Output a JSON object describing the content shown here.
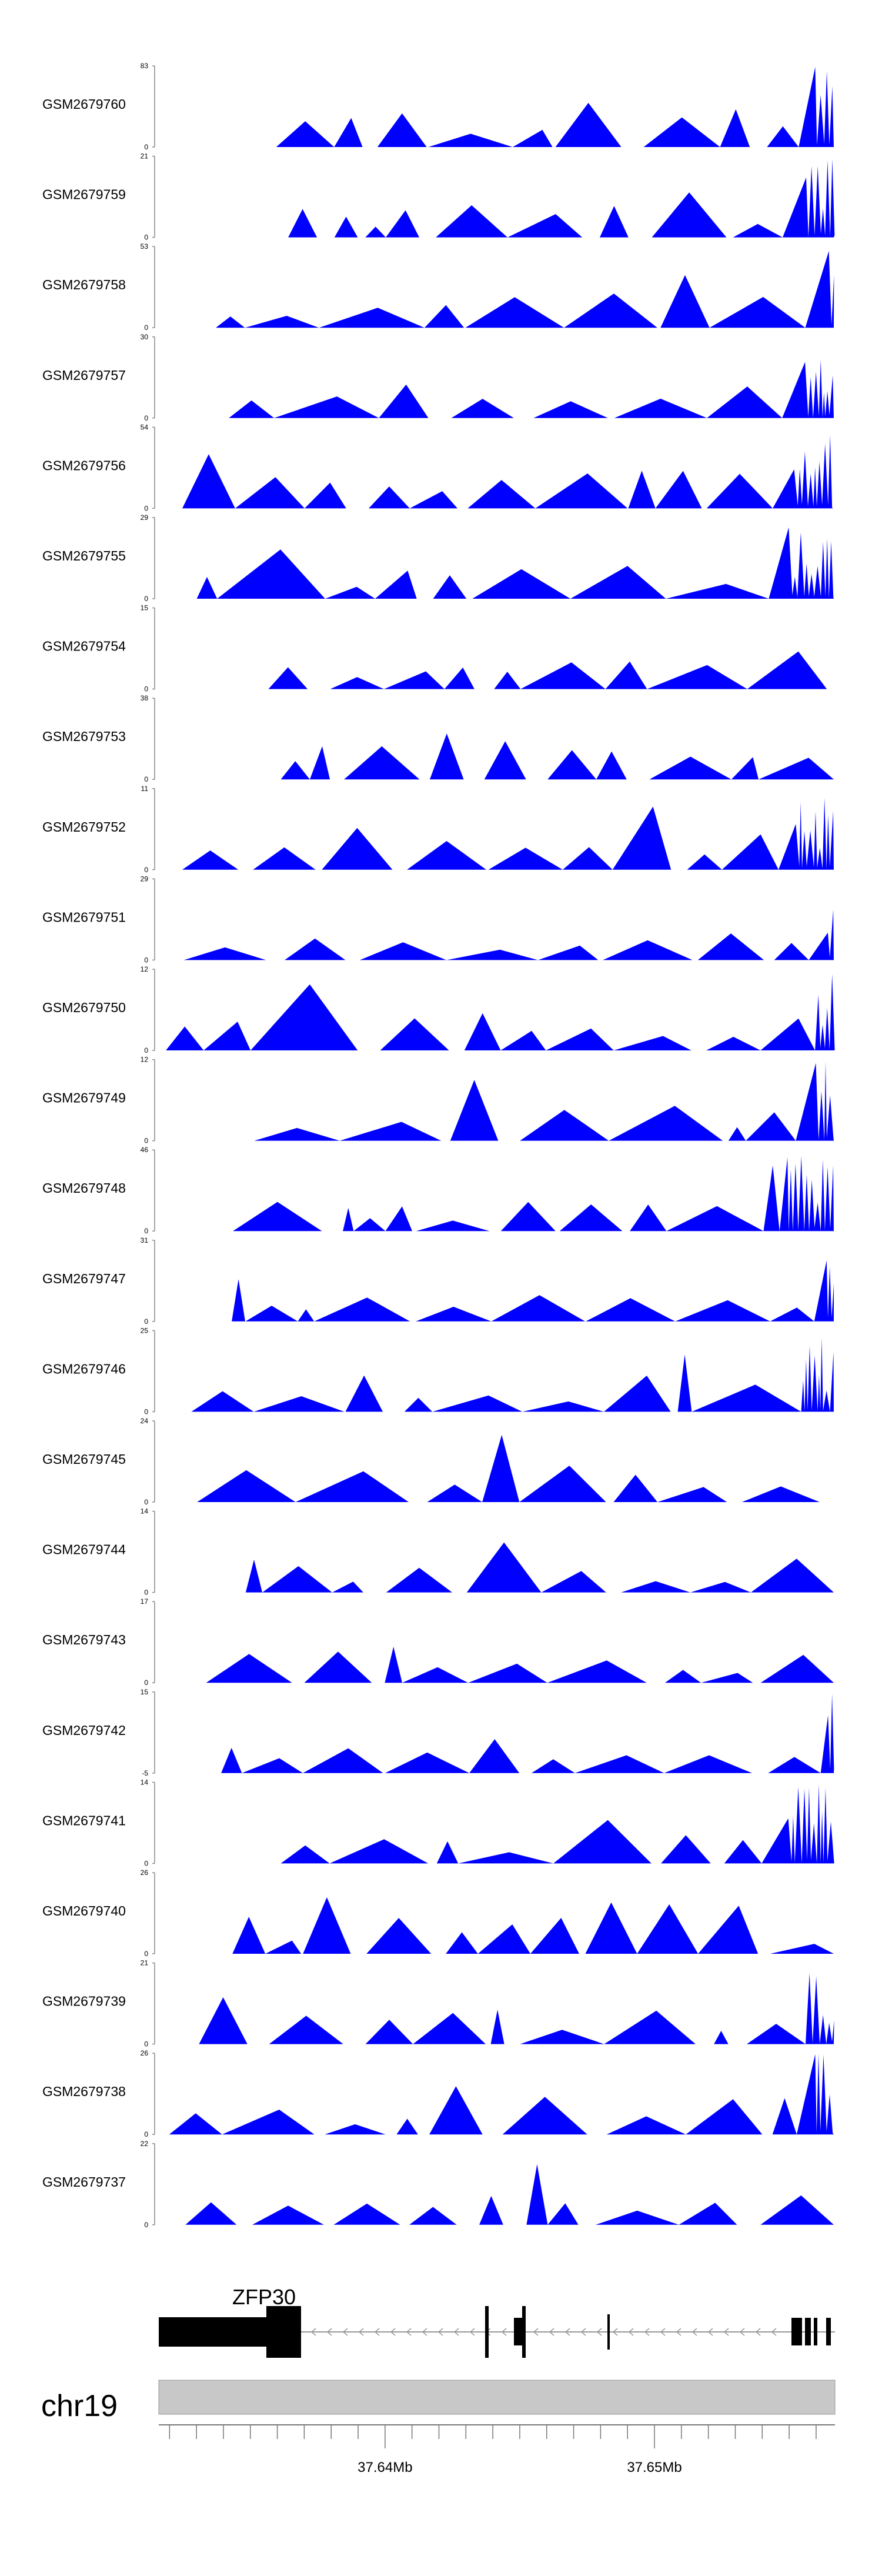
{
  "chart_data": {
    "type": "area",
    "fill_color": "#0000ff",
    "tracks": [
      {
        "name": "GSM2679760",
        "ymax": 83,
        "ymin": 0
      },
      {
        "name": "GSM2679759",
        "ymax": 21,
        "ymin": 0
      },
      {
        "name": "GSM2679758",
        "ymax": 53,
        "ymin": 0
      },
      {
        "name": "GSM2679757",
        "ymax": 30,
        "ymin": 0
      },
      {
        "name": "GSM2679756",
        "ymax": 54,
        "ymin": 0
      },
      {
        "name": "GSM2679755",
        "ymax": 29,
        "ymin": 0
      },
      {
        "name": "GSM2679754",
        "ymax": 15,
        "ymin": 0
      },
      {
        "name": "GSM2679753",
        "ymax": 38,
        "ymin": 0
      },
      {
        "name": "GSM2679752",
        "ymax": 11,
        "ymin": 0
      },
      {
        "name": "GSM2679751",
        "ymax": 29,
        "ymin": 0
      },
      {
        "name": "GSM2679750",
        "ymax": 12,
        "ymin": 0
      },
      {
        "name": "GSM2679749",
        "ymax": 12,
        "ymin": 0
      },
      {
        "name": "GSM2679748",
        "ymax": 46,
        "ymin": 0
      },
      {
        "name": "GSM2679747",
        "ymax": 31,
        "ymin": 0
      },
      {
        "name": "GSM2679746",
        "ymax": 25,
        "ymin": 0
      },
      {
        "name": "GSM2679745",
        "ymax": 24,
        "ymin": 0
      },
      {
        "name": "GSM2679744",
        "ymax": 14,
        "ymin": 0
      },
      {
        "name": "GSM2679743",
        "ymax": 17,
        "ymin": 0
      },
      {
        "name": "GSM2679742",
        "ymax": 15,
        "ymin": -5
      },
      {
        "name": "GSM2679741",
        "ymax": 14,
        "ymin": 0
      },
      {
        "name": "GSM2679740",
        "ymax": 26,
        "ymin": 0
      },
      {
        "name": "GSM2679739",
        "ymax": 21,
        "ymin": 0
      },
      {
        "name": "GSM2679738",
        "ymax": 26,
        "ymin": 0
      },
      {
        "name": "GSM2679737",
        "ymax": 22,
        "ymin": 0
      }
    ],
    "gene": {
      "name": "ZFP30"
    },
    "chromosome": {
      "name": "chr19"
    },
    "x_axis": {
      "unit": "Mb",
      "labels": [
        "37.64Mb",
        "37.65Mb"
      ],
      "major_ticks": [
        37.64,
        37.65
      ],
      "minor_tick_spacing": 0.001,
      "range": [
        37.6316,
        37.6567
      ]
    }
  }
}
